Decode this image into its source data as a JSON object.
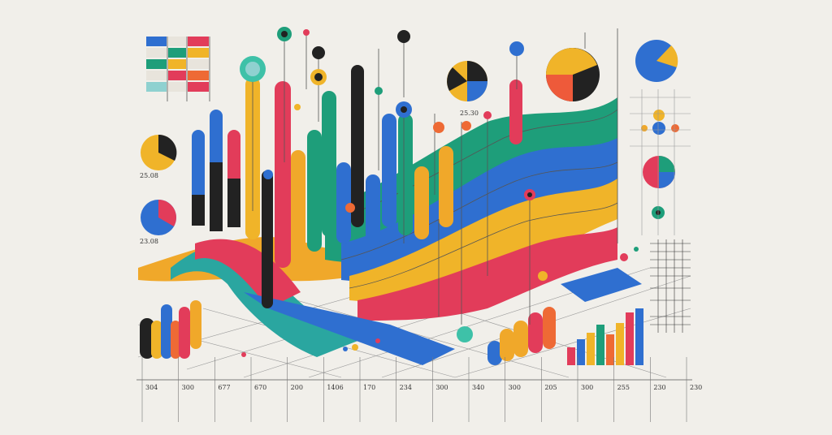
{
  "labels": {
    "pie_left_top": "25.08",
    "pie_left_bottom": "23.08",
    "pie_center": "25.30"
  },
  "bottom_axis": [
    "304",
    "300",
    "677",
    "670",
    "200",
    "1406",
    "170",
    "234",
    "300",
    "340",
    "300",
    "205",
    "300",
    "255",
    "230",
    "230"
  ]
}
